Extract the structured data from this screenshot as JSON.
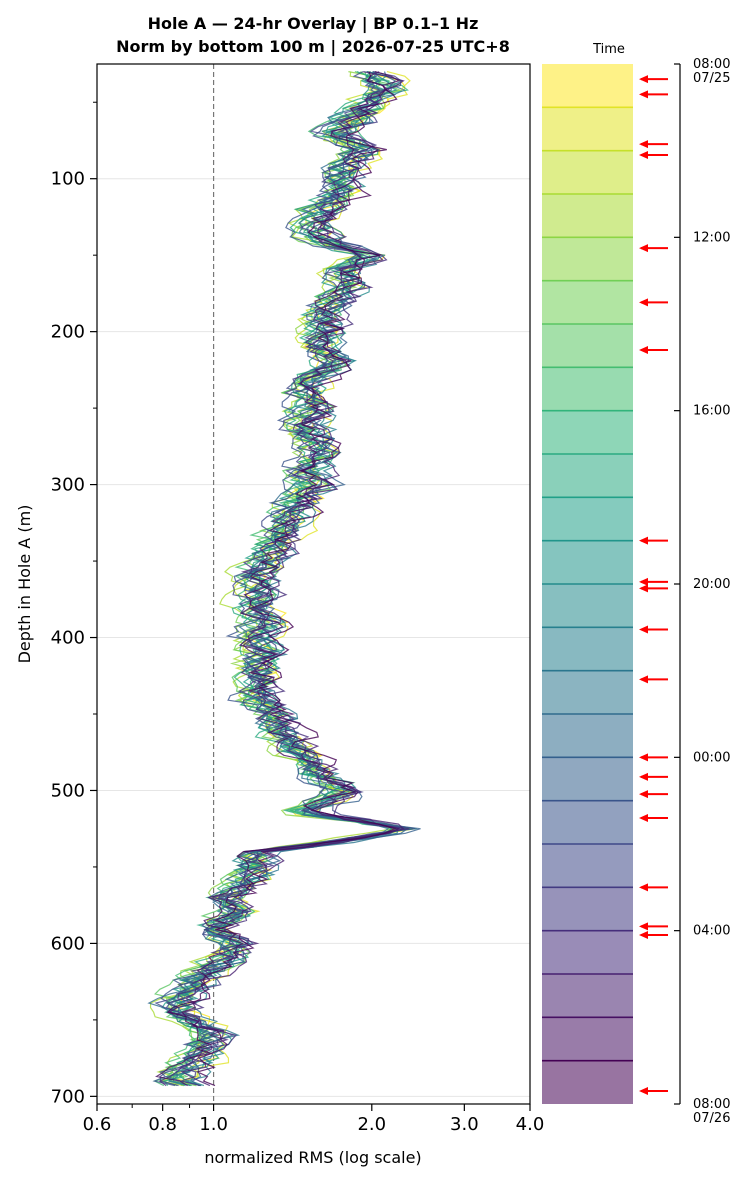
{
  "chart_data": {
    "type": "line",
    "title_line1": "Hole A — 24-hr Overlay  |  BP 0.1–1 Hz",
    "title_line2": "Norm by bottom 100 m  |  2026-07-25 UTC+8",
    "xlabel": "normalized RMS  (log scale)",
    "ylabel": "Depth in Hole A (m)",
    "xscale": "log",
    "xlim": [
      0.6,
      4.0
    ],
    "ylim": [
      705,
      25
    ],
    "xticks": [
      0.6,
      0.8,
      1.0,
      2.0,
      3.0,
      4.0
    ],
    "xtick_labels": [
      "0.6",
      "0.8",
      "1.0",
      "2.0",
      "3.0",
      "4.0"
    ],
    "yticks": [
      100,
      200,
      300,
      400,
      500,
      600,
      700
    ],
    "ytick_labels": [
      "100",
      "200",
      "300",
      "400",
      "500",
      "600",
      "700"
    ],
    "reference_line_x": 1.0,
    "grid": true,
    "depth_min": 30,
    "depth_max": 695,
    "median_profile": {
      "depth": [
        30,
        40,
        50,
        60,
        70,
        80,
        90,
        100,
        110,
        120,
        130,
        140,
        150,
        160,
        170,
        180,
        190,
        200,
        210,
        220,
        230,
        240,
        250,
        260,
        270,
        280,
        290,
        300,
        310,
        320,
        330,
        340,
        350,
        360,
        370,
        380,
        390,
        400,
        410,
        420,
        430,
        440,
        450,
        460,
        470,
        480,
        490,
        500,
        510,
        515,
        520,
        525,
        530,
        535,
        540,
        550,
        560,
        570,
        580,
        590,
        600,
        610,
        620,
        630,
        640,
        650,
        660,
        670,
        680,
        690,
        695
      ],
      "rms": [
        2.0,
        2.15,
        2.0,
        1.85,
        1.7,
        1.95,
        1.8,
        1.7,
        1.75,
        1.6,
        1.55,
        1.6,
        2.0,
        1.75,
        1.8,
        1.7,
        1.6,
        1.65,
        1.6,
        1.7,
        1.55,
        1.5,
        1.55,
        1.5,
        1.55,
        1.6,
        1.5,
        1.55,
        1.45,
        1.4,
        1.35,
        1.3,
        1.25,
        1.2,
        1.22,
        1.2,
        1.25,
        1.2,
        1.25,
        1.2,
        1.25,
        1.2,
        1.3,
        1.35,
        1.4,
        1.5,
        1.6,
        1.8,
        1.6,
        1.5,
        1.9,
        2.3,
        2.0,
        1.6,
        1.2,
        1.2,
        1.15,
        1.05,
        1.1,
        1.0,
        1.1,
        1.05,
        0.95,
        0.9,
        0.85,
        0.9,
        1.0,
        0.95,
        0.9,
        0.85,
        0.9
      ]
    },
    "series_count": 24,
    "colorbar": {
      "label": "Time",
      "ticks": [
        {
          "value": 0,
          "label": "08:00",
          "sublabel": "07/25"
        },
        {
          "value": 4,
          "label": "12:00",
          "sublabel": ""
        },
        {
          "value": 8,
          "label": "16:00",
          "sublabel": ""
        },
        {
          "value": 12,
          "label": "20:00",
          "sublabel": ""
        },
        {
          "value": 16,
          "label": "00:00",
          "sublabel": ""
        },
        {
          "value": 20,
          "label": "04:00",
          "sublabel": ""
        },
        {
          "value": 24,
          "label": "08:00",
          "sublabel": "07/26"
        }
      ],
      "range_hours": [
        0,
        24
      ],
      "band_count": 24,
      "event_hours": [
        0.35,
        0.7,
        1.85,
        2.1,
        4.25,
        5.5,
        6.6,
        11.0,
        11.95,
        12.1,
        13.05,
        14.2,
        16.0,
        16.45,
        16.85,
        17.4,
        19.0,
        19.9,
        20.1,
        23.7
      ],
      "event_color": "#ff0000"
    }
  }
}
